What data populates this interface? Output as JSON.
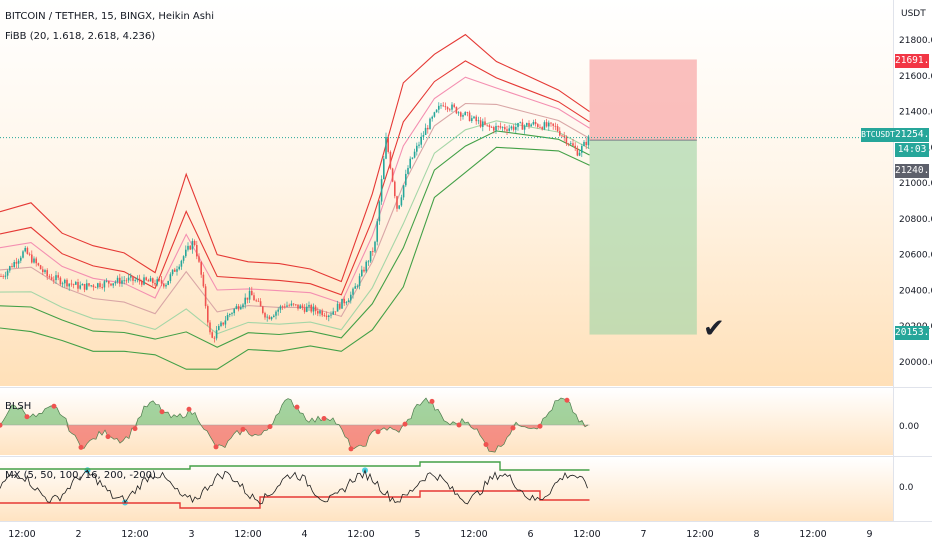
{
  "legend": {
    "symbol_line": "BITCOIN / TETHER, 15, BINGX, Heikin Ashi",
    "indicator_line": "FiBB (20, 1.618, 2.618, 4.236)"
  },
  "price_axis": {
    "currency": "USDT",
    "ticks": [
      "21800.00",
      "21600.00",
      "21400.00",
      "21200.00",
      "21000.00",
      "20800.00",
      "20600.00",
      "20400.00",
      "20200.00",
      "20000.00"
    ]
  },
  "tags": {
    "target_high": "21691.13",
    "current_price": "21254.03",
    "countdown": "14:03",
    "entry_price": "21240.17",
    "target_low": "20153.36",
    "symbol": "BTCUSDT"
  },
  "panes": {
    "blsh": {
      "title": "BLSH",
      "tick": "0.00"
    },
    "mx": {
      "title": "MX (5, 50, 100, 16, 200, -200)",
      "tick": "0.0"
    }
  },
  "time_axis": [
    "12:00",
    "2",
    "12:00",
    "3",
    "12:00",
    "4",
    "12:00",
    "5",
    "12:00",
    "6",
    "12:00",
    "7",
    "12:00",
    "8",
    "12:00",
    "9"
  ],
  "annotation": {
    "checkmark": "✔"
  },
  "colors": {
    "up": "#26a69a",
    "down": "#ef5350",
    "band_red": "#e53935",
    "band_green": "#43a047",
    "risk_zone": "#f8a5a5",
    "reward_zone": "#a5d6a7",
    "current_tag": "#26a69a",
    "high_tag": "#f23645",
    "entry_tag": "#5d606b",
    "mx_highlight": "#4dd0e1"
  },
  "chart_data": [
    {
      "type": "candlestick",
      "title": "BITCOIN / TETHER, 15, BINGX, Heikin Ashi",
      "ylim": [
        19900,
        21950
      ],
      "x_axis_labels": [
        "12:00",
        "2",
        "12:00",
        "3",
        "12:00",
        "4",
        "12:00",
        "5",
        "12:00",
        "6",
        "12:00",
        "7",
        "12:00",
        "8",
        "12:00",
        "9"
      ],
      "price_path": [
        {
          "day": 1.3,
          "price": 20480
        },
        {
          "day": 1.5,
          "price": 20620
        },
        {
          "day": 1.7,
          "price": 20480
        },
        {
          "day": 2.0,
          "price": 20420
        },
        {
          "day": 2.4,
          "price": 20460
        },
        {
          "day": 2.75,
          "price": 20440
        },
        {
          "day": 3.0,
          "price": 20680
        },
        {
          "day": 3.06,
          "price": 20500
        },
        {
          "day": 3.15,
          "price": 20120
        },
        {
          "day": 3.3,
          "price": 20260
        },
        {
          "day": 3.5,
          "price": 20380
        },
        {
          "day": 3.65,
          "price": 20250
        },
        {
          "day": 3.8,
          "price": 20320
        },
        {
          "day": 4.0,
          "price": 20300
        },
        {
          "day": 4.2,
          "price": 20270
        },
        {
          "day": 4.4,
          "price": 20380
        },
        {
          "day": 4.6,
          "price": 20650
        },
        {
          "day": 4.7,
          "price": 21250
        },
        {
          "day": 4.8,
          "price": 20850
        },
        {
          "day": 4.9,
          "price": 21100
        },
        {
          "day": 5.05,
          "price": 21300
        },
        {
          "day": 5.2,
          "price": 21450
        },
        {
          "day": 5.4,
          "price": 21380
        },
        {
          "day": 5.6,
          "price": 21310
        },
        {
          "day": 5.8,
          "price": 21310
        },
        {
          "day": 6.0,
          "price": 21330
        },
        {
          "day": 6.2,
          "price": 21310
        },
        {
          "day": 6.4,
          "price": 21170
        },
        {
          "day": 6.5,
          "price": 21254
        }
      ],
      "fibb_bands": {
        "offsets": [
          1.618,
          2.618,
          4.236
        ],
        "upper_4236": [
          20840,
          20890,
          20720,
          20650,
          20610,
          20500,
          21050,
          20600,
          20560,
          20550,
          20520,
          20450,
          20940,
          21560,
          21720,
          21830,
          21680,
          21600,
          21520,
          21400
        ],
        "lower_4236": [
          20190,
          20170,
          20120,
          20060,
          20060,
          20040,
          19960,
          19960,
          20070,
          20060,
          20090,
          20060,
          20180,
          20420,
          20920,
          21060,
          21200,
          21190,
          21180,
          21100
        ]
      },
      "position": {
        "entry": 21240.17,
        "stop": 21691.13,
        "target": 20153.36,
        "start_day": 6.5,
        "end_day": 7.45
      },
      "current_price": 21254.03
    },
    {
      "type": "area",
      "title": "BLSH",
      "ylim": [
        -1,
        1
      ],
      "baseline": 0.0
    },
    {
      "type": "line",
      "title": "MX (5, 50, 100, 16, 200, -200)",
      "params": [
        5,
        50,
        100,
        16,
        200,
        -200
      ],
      "ylim": [
        -1,
        1
      ],
      "baseline": 0.0
    }
  ]
}
